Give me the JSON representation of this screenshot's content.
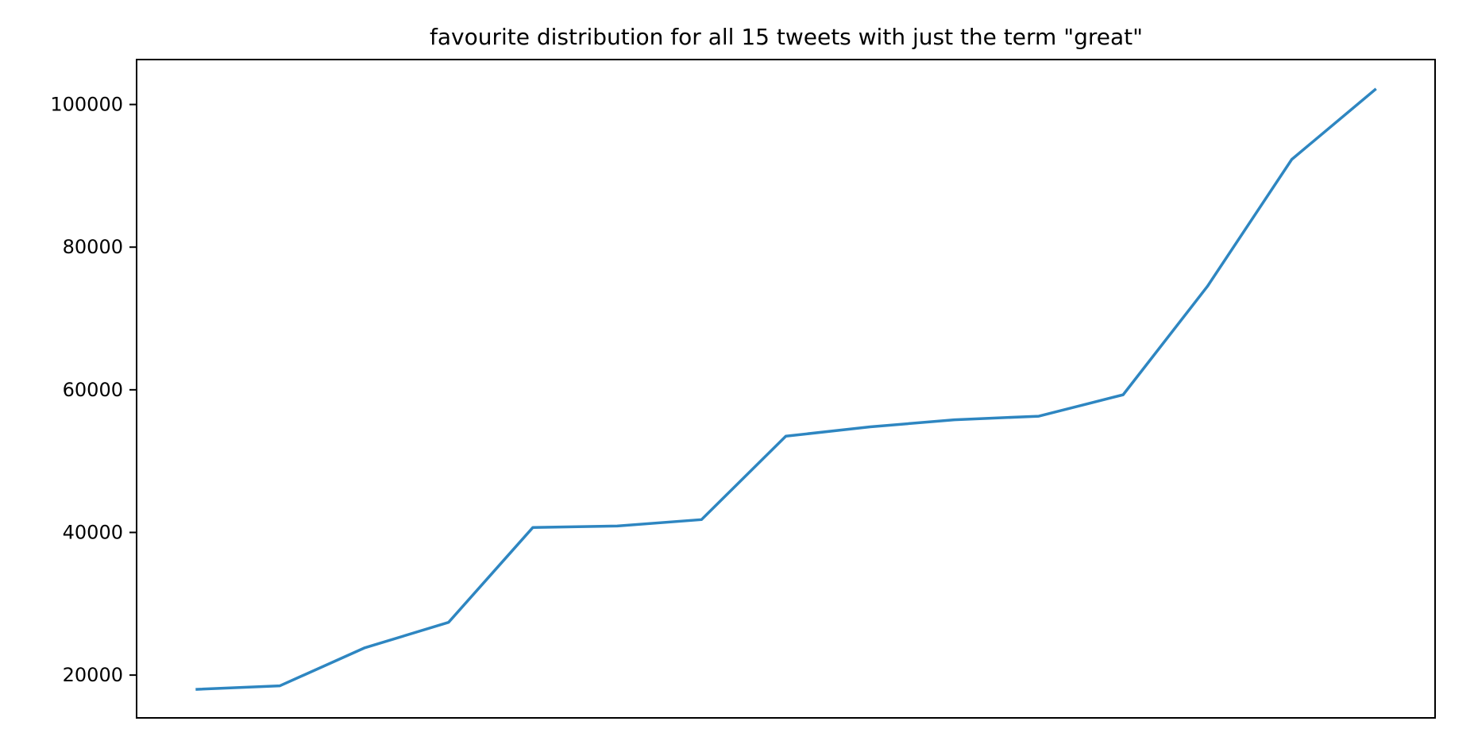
{
  "chart_data": {
    "type": "line",
    "title": "favourite distribution for all 15 tweets with just the term \"great\"",
    "xlabel": "",
    "ylabel": "",
    "x": [
      0,
      1,
      2,
      3,
      4,
      5,
      6,
      7,
      8,
      9,
      10,
      11,
      12,
      13,
      14
    ],
    "series": [
      {
        "values": [
          18000,
          18500,
          23800,
          27400,
          40700,
          40900,
          41800,
          53500,
          54800,
          55800,
          56300,
          59300,
          74500,
          92300,
          102200
        ],
        "color": "#2e86c1"
      }
    ],
    "xlim": [
      -0.7,
      14.7
    ],
    "ylim": [
      14000,
      106300
    ],
    "y_ticks": [
      20000,
      40000,
      60000,
      80000,
      100000
    ],
    "y_tick_labels": [
      "20000",
      "40000",
      "60000",
      "80000",
      "100000"
    ],
    "x_ticks_visible": false,
    "grid": false,
    "legend": "none"
  }
}
